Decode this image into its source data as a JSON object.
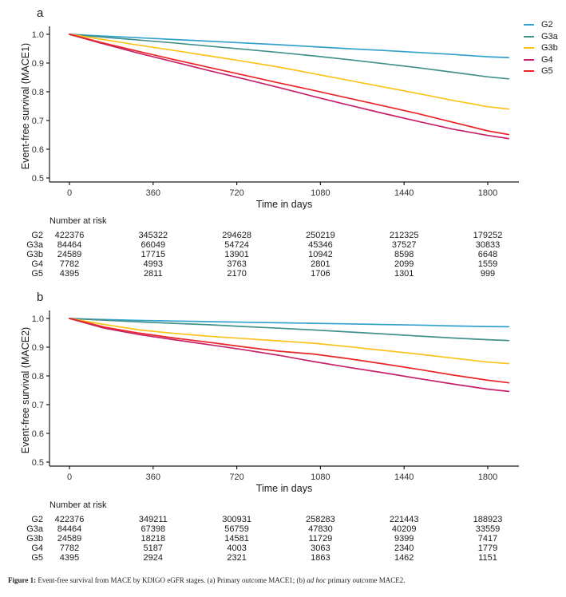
{
  "caption": {
    "prefix": "Figure 1:",
    "text1": " Event-free survival from MACE by KDIGO eGFR stages. (a) Primary outcome MACE1; (b) ",
    "italic": "ad hoc",
    "text2": " primary outcome MACE2."
  },
  "palette": {
    "G2": "#33A2CB",
    "G3a": "#41918C",
    "G3b": "#FBC21A",
    "G4": "#C72169",
    "G5": "#EA2528",
    "axis": "#1a1a1a",
    "tick_text": "#333333"
  },
  "legend": {
    "position": "top-right",
    "items": [
      "G2",
      "G3a",
      "G3b",
      "G4",
      "G5"
    ]
  },
  "chart_data": [
    {
      "type": "line",
      "panel_label": "a",
      "xlabel": "Time in days",
      "ylabel": "Event-free survival (MACE1)",
      "xlim": [
        0,
        1890
      ],
      "ylim": [
        0.5,
        1.0
      ],
      "xticks": [
        0,
        360,
        720,
        1080,
        1440,
        1800
      ],
      "yticks": [
        0.5,
        0.6,
        0.7,
        0.8,
        0.9,
        1.0
      ],
      "grid": false,
      "x": [
        0,
        150,
        300,
        450,
        600,
        750,
        900,
        1050,
        1200,
        1350,
        1500,
        1650,
        1800,
        1890
      ],
      "series": [
        {
          "name": "G2",
          "color": "#33A2CB",
          "values": [
            1.0,
            0.994,
            0.988,
            0.982,
            0.976,
            0.97,
            0.964,
            0.957,
            0.95,
            0.944,
            0.937,
            0.93,
            0.922,
            0.919
          ]
        },
        {
          "name": "G3a",
          "color": "#41918C",
          "values": [
            1.0,
            0.99,
            0.98,
            0.97,
            0.959,
            0.948,
            0.937,
            0.925,
            0.912,
            0.898,
            0.884,
            0.868,
            0.852,
            0.845
          ]
        },
        {
          "name": "G3b",
          "color": "#FBC21A",
          "values": [
            1.0,
            0.981,
            0.962,
            0.944,
            0.925,
            0.906,
            0.886,
            0.863,
            0.84,
            0.817,
            0.794,
            0.77,
            0.748,
            0.74
          ]
        },
        {
          "name": "G4",
          "color": "#C72169",
          "values": [
            1.0,
            0.966,
            0.934,
            0.904,
            0.874,
            0.845,
            0.815,
            0.784,
            0.754,
            0.725,
            0.697,
            0.67,
            0.648,
            0.637
          ]
        },
        {
          "name": "G5",
          "color": "#EA2528",
          "values": [
            1.0,
            0.969,
            0.94,
            0.912,
            0.885,
            0.858,
            0.831,
            0.805,
            0.778,
            0.751,
            0.724,
            0.694,
            0.664,
            0.651
          ]
        }
      ],
      "number_at_risk": {
        "title": "Number at risk",
        "times": [
          0,
          360,
          720,
          1080,
          1440,
          1800
        ],
        "rows": [
          {
            "name": "G2",
            "counts": [
              422376,
              345322,
              294628,
              250219,
              212325,
              179252
            ]
          },
          {
            "name": "G3a",
            "counts": [
              84464,
              66049,
              54724,
              45346,
              37527,
              30833
            ]
          },
          {
            "name": "G3b",
            "counts": [
              24589,
              17715,
              13901,
              10942,
              8598,
              6648
            ]
          },
          {
            "name": "G4",
            "counts": [
              7782,
              4993,
              3763,
              2801,
              2099,
              1559
            ]
          },
          {
            "name": "G5",
            "counts": [
              4395,
              2811,
              2170,
              1706,
              1301,
              999
            ]
          }
        ]
      }
    },
    {
      "type": "line",
      "panel_label": "b",
      "xlabel": "Time in days",
      "ylabel": "Event-free survival (MACE2)",
      "xlim": [
        0,
        1890
      ],
      "ylim": [
        0.5,
        1.0
      ],
      "xticks": [
        0,
        360,
        720,
        1080,
        1440,
        1800
      ],
      "yticks": [
        0.5,
        0.6,
        0.7,
        0.8,
        0.9,
        1.0
      ],
      "grid": false,
      "x": [
        0,
        150,
        300,
        450,
        600,
        750,
        900,
        1050,
        1200,
        1350,
        1500,
        1650,
        1800,
        1890
      ],
      "series": [
        {
          "name": "G2",
          "color": "#33A2CB",
          "values": [
            1.0,
            0.996,
            0.993,
            0.991,
            0.989,
            0.987,
            0.985,
            0.983,
            0.981,
            0.979,
            0.977,
            0.974,
            0.972,
            0.971
          ]
        },
        {
          "name": "G3a",
          "color": "#41918C",
          "values": [
            1.0,
            0.994,
            0.988,
            0.983,
            0.978,
            0.972,
            0.966,
            0.96,
            0.953,
            0.946,
            0.939,
            0.932,
            0.926,
            0.923
          ]
        },
        {
          "name": "G3b",
          "color": "#FBC21A",
          "values": [
            1.0,
            0.979,
            0.96,
            0.948,
            0.938,
            0.93,
            0.922,
            0.914,
            0.902,
            0.889,
            0.876,
            0.862,
            0.848,
            0.843
          ]
        },
        {
          "name": "G4",
          "color": "#C72169",
          "values": [
            1.0,
            0.966,
            0.944,
            0.926,
            0.909,
            0.891,
            0.872,
            0.85,
            0.83,
            0.811,
            0.791,
            0.772,
            0.754,
            0.746
          ]
        },
        {
          "name": "G5",
          "color": "#EA2528",
          "values": [
            1.0,
            0.97,
            0.949,
            0.932,
            0.917,
            0.901,
            0.886,
            0.876,
            0.86,
            0.842,
            0.823,
            0.803,
            0.785,
            0.776
          ]
        }
      ],
      "number_at_risk": {
        "title": "Number at risk",
        "times": [
          0,
          360,
          720,
          1080,
          1440,
          1800
        ],
        "rows": [
          {
            "name": "G2",
            "counts": [
              422376,
              349211,
              300931,
              258283,
              221443,
              188923
            ]
          },
          {
            "name": "G3a",
            "counts": [
              84464,
              67398,
              56759,
              47830,
              40209,
              33559
            ]
          },
          {
            "name": "G3b",
            "counts": [
              24589,
              18218,
              14581,
              11729,
              9399,
              7417
            ]
          },
          {
            "name": "G4",
            "counts": [
              7782,
              5187,
              4003,
              3063,
              2340,
              1779
            ]
          },
          {
            "name": "G5",
            "counts": [
              4395,
              2924,
              2321,
              1863,
              1462,
              1151
            ]
          }
        ]
      }
    }
  ]
}
